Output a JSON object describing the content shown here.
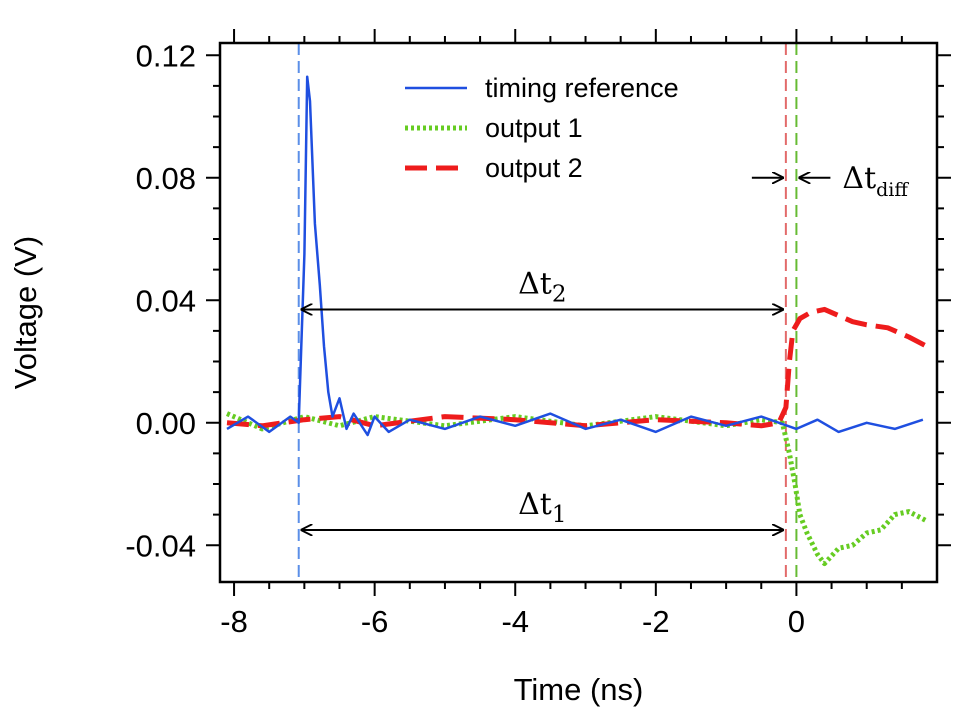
{
  "chart_data": {
    "type": "line",
    "xlabel": "Time (ns)",
    "ylabel": "Voltage (V)",
    "xlim": [
      -8.2,
      2.0
    ],
    "ylim": [
      -0.052,
      0.124
    ],
    "x_ticks": [
      -8,
      -6,
      -4,
      -2,
      0
    ],
    "x_tick_labels": [
      "-8",
      "-6",
      "-4",
      "-2",
      "0"
    ],
    "y_ticks": [
      -0.04,
      0.0,
      0.04,
      0.08,
      0.12
    ],
    "y_tick_labels": [
      "-0.04",
      "0.00",
      "0.04",
      "0.08",
      "0.12"
    ],
    "grid": false,
    "legend_position": "top-center",
    "series": [
      {
        "name": "timing reference",
        "color": "#1f4fe0",
        "style": "solid",
        "x": [
          -8.1,
          -7.8,
          -7.5,
          -7.2,
          -7.08,
          -7.0,
          -6.96,
          -6.92,
          -6.85,
          -6.78,
          -6.72,
          -6.66,
          -6.6,
          -6.5,
          -6.4,
          -6.3,
          -6.1,
          -6.0,
          -5.8,
          -5.5,
          -5.0,
          -4.5,
          -4.0,
          -3.5,
          -3.0,
          -2.5,
          -2.0,
          -1.5,
          -1.0,
          -0.5,
          0.0,
          0.3,
          0.6,
          1.0,
          1.4,
          1.8
        ],
        "y": [
          -0.002,
          0.002,
          -0.003,
          0.002,
          0.0,
          0.055,
          0.113,
          0.105,
          0.065,
          0.045,
          0.025,
          0.01,
          0.002,
          0.008,
          -0.002,
          0.003,
          -0.004,
          0.002,
          -0.003,
          0.001,
          -0.002,
          0.002,
          -0.001,
          0.003,
          -0.002,
          0.001,
          -0.003,
          0.002,
          -0.001,
          0.002,
          -0.002,
          0.001,
          -0.003,
          0.0,
          -0.002,
          0.001
        ]
      },
      {
        "name": "output 1",
        "color": "#66cc22",
        "style": "dotted",
        "x": [
          -8.1,
          -7.6,
          -7.0,
          -6.5,
          -6.0,
          -5.0,
          -4.0,
          -3.0,
          -2.0,
          -1.0,
          -0.5,
          -0.2,
          -0.1,
          -0.02,
          0.05,
          0.15,
          0.3,
          0.4,
          0.6,
          0.8,
          1.0,
          1.2,
          1.4,
          1.6,
          1.85
        ],
        "y": [
          0.003,
          -0.002,
          0.002,
          -0.001,
          0.002,
          -0.001,
          0.002,
          -0.001,
          0.002,
          -0.001,
          0.001,
          0.0,
          -0.01,
          -0.02,
          -0.03,
          -0.036,
          -0.043,
          -0.046,
          -0.041,
          -0.04,
          -0.036,
          -0.035,
          -0.03,
          -0.029,
          -0.032
        ]
      },
      {
        "name": "output 2",
        "color": "#ee1c1c",
        "style": "dashed",
        "x": [
          -8.1,
          -7.6,
          -7.0,
          -6.5,
          -6.0,
          -5.0,
          -4.0,
          -3.0,
          -2.0,
          -1.0,
          -0.5,
          -0.25,
          -0.15,
          -0.1,
          -0.05,
          0.05,
          0.2,
          0.4,
          0.6,
          0.8,
          1.0,
          1.3,
          1.6,
          1.85
        ],
        "y": [
          0.0,
          -0.001,
          0.001,
          0.002,
          -0.001,
          0.002,
          0.001,
          -0.001,
          0.001,
          0.0,
          -0.001,
          0.0,
          0.005,
          0.02,
          0.03,
          0.034,
          0.036,
          0.037,
          0.035,
          0.033,
          0.032,
          0.031,
          0.028,
          0.025
        ]
      }
    ],
    "markers": [
      {
        "x": -7.08,
        "color": "#5b8fe8"
      },
      {
        "x": -0.15,
        "color": "#e26a6a"
      },
      {
        "x": 0.0,
        "color": "#66bb33"
      }
    ],
    "annotations": [
      {
        "symbol": "Δt",
        "subscript": "2",
        "x_from": -7.08,
        "x_to": -0.15,
        "y": 0.037
      },
      {
        "symbol": "Δt",
        "subscript": "1",
        "x_from": -7.08,
        "x_to": -0.15,
        "y": -0.035
      },
      {
        "symbol": "Δt",
        "subscript": "diff",
        "x_from": -0.15,
        "x_to": 0.0,
        "y": 0.08
      }
    ]
  }
}
